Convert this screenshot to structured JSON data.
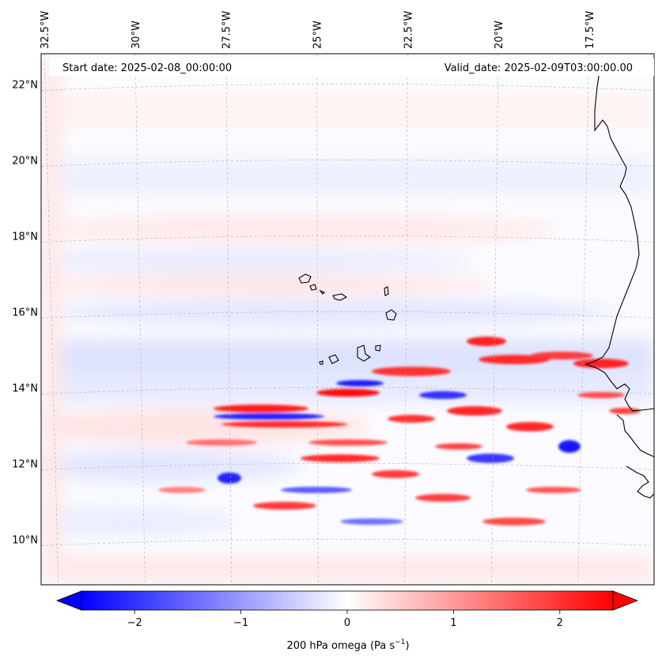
{
  "header": {
    "start_date": "Start date: 2025-02-08_00:00:00",
    "valid_date": "Valid_date: 2025-02-09T03:00:00.00"
  },
  "map": {
    "lon_range": [
      -33,
      -15.3
    ],
    "lat_range": [
      8.8,
      22.8
    ],
    "lon_labels": [
      "32.5°W",
      "30°W",
      "27.5°W",
      "25°W",
      "22.5°W",
      "20°W",
      "17.5°W"
    ],
    "lon_values": [
      -32.5,
      -30,
      -27.5,
      -25,
      -22.5,
      -20,
      -17.5
    ],
    "lat_labels": [
      "22°N",
      "20°N",
      "18°N",
      "16°N",
      "14°N",
      "12°N",
      "10°N"
    ],
    "lat_values": [
      22,
      20,
      18,
      16,
      14,
      12,
      10
    ],
    "gridlines": true,
    "coastline": "West Africa (Senegal / Mauritania coast) and Cape Verde islands"
  },
  "colorbar": {
    "label": "200 hPa omega (Pa s",
    "label_sup": "−1",
    "label_close": ")",
    "ticks": [
      "−2",
      "−1",
      "0",
      "1",
      "2"
    ],
    "tick_values": [
      -2,
      -1,
      0,
      1,
      2
    ],
    "range": [
      -2.5,
      2.5
    ],
    "colormap": "bwr",
    "extend": "both",
    "min_color": "#0000ff",
    "mid_color": "#ffffff",
    "max_color": "#ff0000"
  }
}
